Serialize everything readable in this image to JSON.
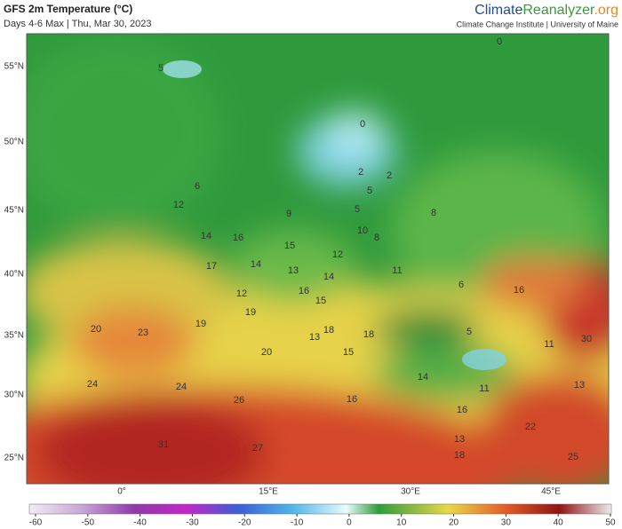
{
  "header": {
    "title": "GFS 2m Temperature (°C)",
    "subtitle": "Days 4-6 Max | Thu, Mar 30, 2023",
    "brand": [
      "Climate",
      "Reanalyzer",
      ".org"
    ],
    "institute": "Climate Change Institute | University of Maine"
  },
  "lat_labels": [
    "55°N",
    "50°N",
    "45°N",
    "40°N",
    "35°N",
    "30°N",
    "25°N"
  ],
  "lon_labels": [
    "0°",
    "15°E",
    "30°E",
    "45°E"
  ],
  "map_labels": [
    5,
    0,
    0,
    2,
    2,
    5,
    5,
    8,
    6,
    12,
    9,
    14,
    16,
    10,
    8,
    15,
    12,
    17,
    14,
    13,
    14,
    11,
    6,
    16,
    12,
    16,
    15,
    19,
    19,
    20,
    23,
    13,
    18,
    18,
    5,
    11,
    30,
    20,
    15,
    14,
    11,
    13,
    24,
    24,
    26,
    16,
    16,
    22,
    13,
    18,
    31,
    27,
    25
  ],
  "colorbar_ticks": [
    -60,
    -50,
    -40,
    -30,
    -20,
    -10,
    0,
    10,
    20,
    30,
    40,
    50
  ]
}
